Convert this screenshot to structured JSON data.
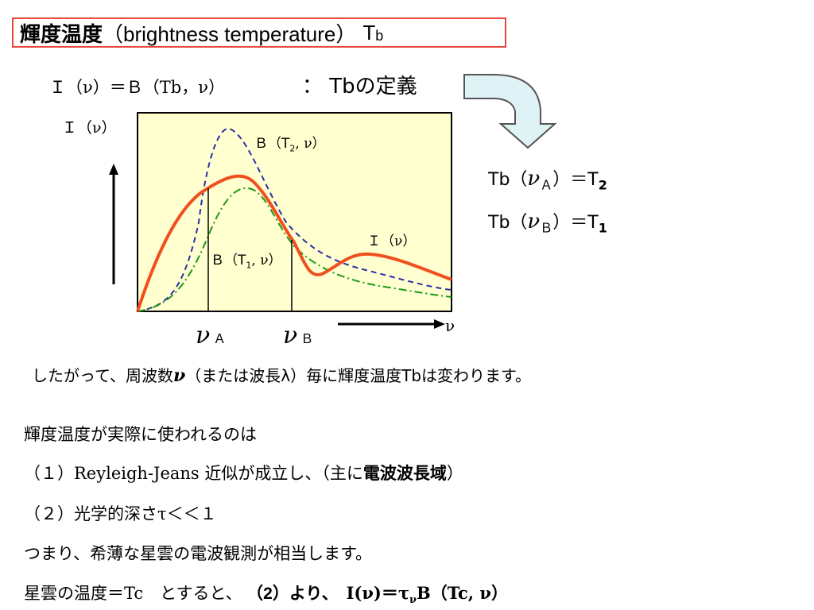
{
  "title": {
    "jp": "輝度温度",
    "en": "（brightness temperature）",
    "symbol": "T",
    "symbol_sub": "b"
  },
  "definition": {
    "equation": "Ｉ（ν）＝Ｂ（Tb，ν）",
    "label": "：  Tbの定義"
  },
  "graph": {
    "y_axis_label": "Ｉ（ν）",
    "x_axis_label": "ν",
    "curve_B_T2": "Ｂ（T",
    "curve_B_T2_sub": "2",
    "curve_B_T2_end": ", ν）",
    "curve_B_T1": "Ｂ（T",
    "curve_B_T1_sub": "1",
    "curve_B_T1_end": ", ν）",
    "curve_I": "Ｉ（ν）",
    "nu_A": "ν",
    "nu_A_sub": "Ａ",
    "nu_B": "ν",
    "nu_B_sub": "Ｂ",
    "colors": {
      "I_curve": "#f0501e",
      "B_T2_curve": "#2a2fa6",
      "B_T1_curve": "#1a9a1a",
      "plot_bg": "#ffffd0"
    }
  },
  "results": {
    "line1_pre": "Tb（",
    "line1_nu": "ν",
    "line1_sub": "Ａ",
    "line1_post": "）＝T",
    "line1_T_sub": "2",
    "line2_pre": "Tb（",
    "line2_nu": "ν",
    "line2_sub": "Ｂ",
    "line2_post": "）＝T",
    "line2_T_sub": "1"
  },
  "text": {
    "therefore_pre": "したがって、周波数",
    "therefore_nu": "ν",
    "therefore_post": "（または波長λ）毎に輝度温度Tbは変わります。",
    "usage_intro": "輝度温度が実際に使われるのは",
    "cond1_pre": "（１）Reyleigh-Jeans 近似が成立し、（主に",
    "cond1_bold": "電波波長域",
    "cond1_post": "）",
    "cond2": "（２）光学的深さτ＜＜１",
    "summary": "つまり、希薄な星雲の電波観測が相当します。",
    "last_pre": "星雲の温度＝Tc　とすると、",
    "last_bold1": "（2）より、",
    "last_eq_a": "I(ν)＝τ",
    "last_eq_sub": "ν",
    "last_eq_b": "B（Tc, ν）"
  }
}
